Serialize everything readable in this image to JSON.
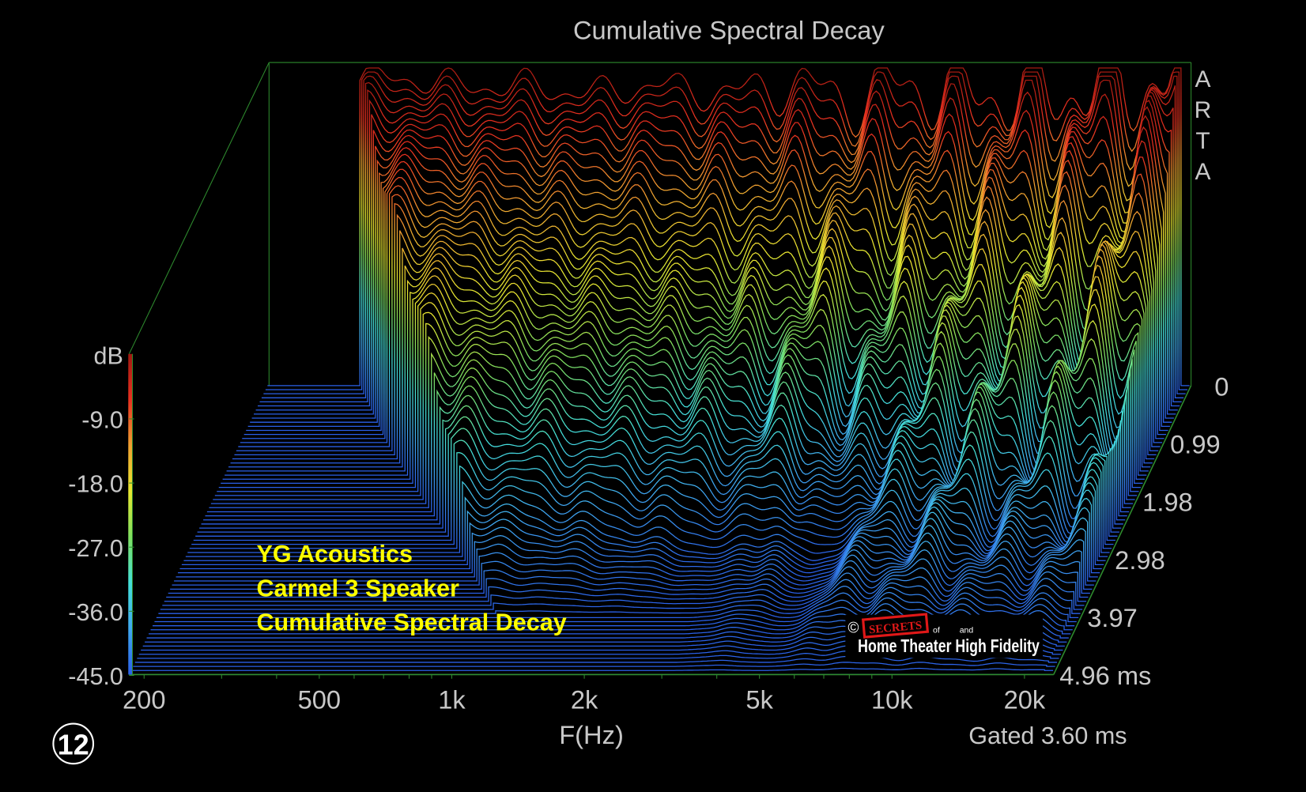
{
  "chart_data": {
    "type": "waterfall",
    "title": "Cumulative Spectral Decay",
    "xlabel": "F(Hz)",
    "ylabel": "dB",
    "zlabel": "ms",
    "software_mark": "ARTA",
    "gating_note": "Gated 3.60 ms",
    "x_scale": "log",
    "xlim": [
      200,
      20000
    ],
    "x_ticks": [
      {
        "value": 200,
        "label": "200"
      },
      {
        "value": 500,
        "label": "500"
      },
      {
        "value": 1000,
        "label": "1k"
      },
      {
        "value": 2000,
        "label": "2k"
      },
      {
        "value": 5000,
        "label": "5k"
      },
      {
        "value": 10000,
        "label": "10k"
      },
      {
        "value": 20000,
        "label": "20k"
      }
    ],
    "ylim": [
      -45,
      0
    ],
    "y_ticks": [
      "-9.0",
      "-18.0",
      "-27.0",
      "-36.0",
      "-45.0"
    ],
    "zlim": [
      0,
      4.96
    ],
    "z_ticks": [
      "0",
      "0.99",
      "1.98",
      "2.98",
      "3.97",
      "4.96 ms"
    ],
    "colormap": [
      "#2a5fe8",
      "#3fa8f0",
      "#44e0d8",
      "#7fe060",
      "#e8e830",
      "#f0a030",
      "#e83020",
      "#a01810"
    ],
    "floor_color": "#3a6ef2",
    "axis_color": "#2e8b2e",
    "frequencies_hz": [
      300,
      400,
      500,
      700,
      1000,
      1400,
      2000,
      3000,
      4000,
      5000,
      7000,
      10000,
      14000,
      20000
    ],
    "times_ms": [
      0,
      0.99,
      1.98,
      2.98,
      3.97,
      4.96
    ],
    "levels_db": [
      [
        -2,
        -2,
        -3,
        -3,
        -4,
        -3,
        -4,
        -3,
        -5,
        -3,
        -4,
        -4,
        -3,
        -2
      ],
      [
        -8,
        -10,
        -12,
        -14,
        -17,
        -18,
        -20,
        -22,
        -20,
        -24,
        -22,
        -20,
        -22,
        -18
      ],
      [
        -14,
        -17,
        -20,
        -23,
        -26,
        -28,
        -30,
        -33,
        -32,
        -38,
        -33,
        -30,
        -30,
        -28
      ],
      [
        -20,
        -25,
        -30,
        -35,
        -38,
        -40,
        -42,
        -44,
        -42,
        -45,
        -40,
        -38,
        -40,
        -38
      ],
      [
        -45,
        -45,
        -45,
        -45,
        -45,
        -45,
        -45,
        -45,
        -44,
        -45,
        -42,
        -42,
        -43,
        -43
      ],
      [
        -45,
        -45,
        -45,
        -45,
        -45,
        -45,
        -45,
        -45,
        -45,
        -45,
        -45,
        -45,
        -45,
        -45
      ]
    ],
    "low_cutoff_hz": [
      300,
      400,
      560,
      800,
      1100,
      1500
    ],
    "annotations": [
      "YG Acoustics",
      "Carmel 3 Speaker",
      "Cumulative Spectral Decay"
    ]
  },
  "logo": {
    "copyright": "©",
    "brand": "SECRETS",
    "of": "of",
    "and": "and",
    "name": "Home Theater High Fidelity"
  },
  "figure_number": "12"
}
